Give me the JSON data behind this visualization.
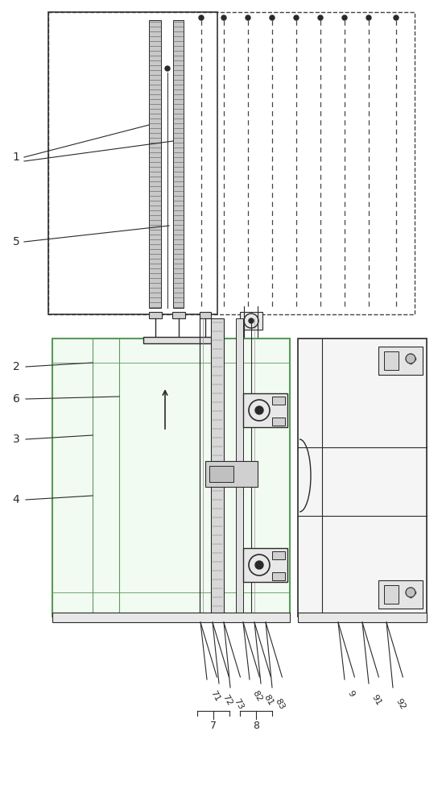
{
  "bg_color": "#ffffff",
  "lc": "#2a2a2a",
  "gc": "#5a9a5a",
  "fig_width": 5.49,
  "fig_height": 10.0,
  "dpi": 100
}
